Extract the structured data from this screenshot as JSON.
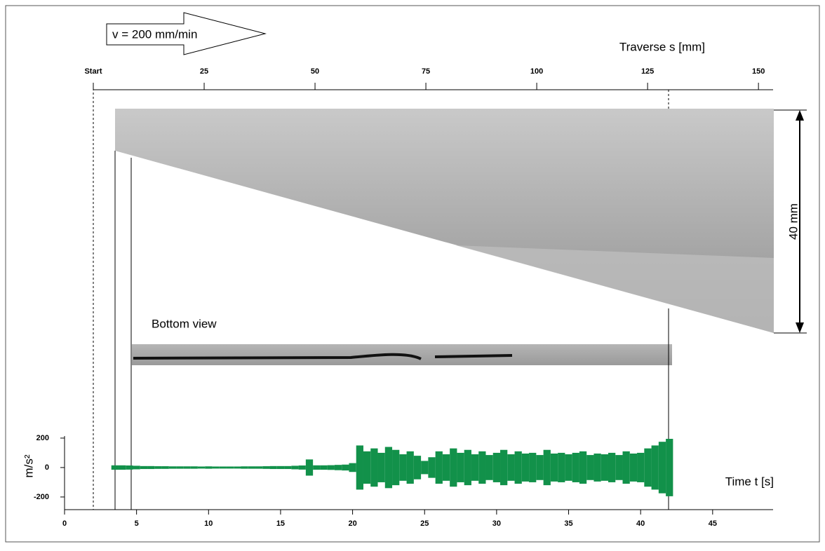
{
  "chart_data": {
    "type": "signal",
    "x_label": "Time t [s]",
    "y_label": "m/s²",
    "x2_label": "Traverse s [mm]",
    "annotations": {
      "speed": "v = 200 mm/min",
      "bottom_view": "Bottom view",
      "height": "40 mm"
    },
    "xlim": [
      0,
      49.1
    ],
    "xticks": [
      0,
      5,
      10,
      15,
      20,
      25,
      30,
      35,
      40,
      45
    ],
    "ylim": [
      -286,
      214
    ],
    "yticks": [
      -200,
      0,
      200
    ],
    "x2lim": [
      0,
      153.3
    ],
    "x2ticks": [
      {
        "value": 0,
        "label": "Start"
      },
      25,
      50,
      75,
      100,
      125,
      150
    ],
    "color": "#12914a",
    "x": [
      3.5,
      4,
      4.5,
      5,
      5.5,
      6,
      6.5,
      7,
      7.5,
      8,
      8.5,
      9,
      9.5,
      10,
      10.5,
      11,
      11.5,
      12,
      12.5,
      13,
      13.5,
      14,
      14.5,
      15,
      15.5,
      16,
      16.5,
      17,
      17.5,
      18,
      18.5,
      19,
      19.5,
      20,
      20.5,
      21,
      21.5,
      22,
      22.5,
      23,
      23.5,
      24,
      24.5,
      25,
      25.5,
      26,
      26.5,
      27,
      27.5,
      28,
      28.5,
      29,
      29.5,
      30,
      30.5,
      31,
      31.5,
      32,
      32.5,
      33,
      33.5,
      34,
      34.5,
      35,
      35.5,
      36,
      36.5,
      37,
      37.5,
      38,
      38.5,
      39,
      39.5,
      40,
      40.5,
      41,
      41.5,
      42
    ],
    "values": [
      15,
      15,
      14,
      12,
      10,
      10,
      9,
      9,
      8,
      8,
      8,
      8,
      7,
      8,
      7,
      7,
      7,
      7,
      8,
      8,
      8,
      9,
      10,
      10,
      10,
      12,
      14,
      55,
      15,
      15,
      16,
      18,
      20,
      30,
      150,
      110,
      130,
      100,
      140,
      120,
      90,
      110,
      80,
      45,
      70,
      110,
      90,
      130,
      100,
      120,
      90,
      110,
      85,
      100,
      120,
      90,
      110,
      95,
      100,
      85,
      120,
      95,
      100,
      90,
      100,
      110,
      85,
      95,
      90,
      100,
      85,
      110,
      95,
      100,
      130,
      150,
      175,
      195
    ]
  }
}
